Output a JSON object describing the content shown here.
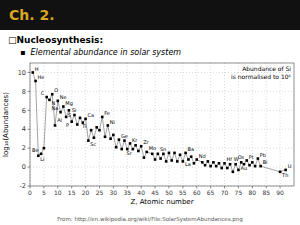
{
  "chart_data": {
    "type": "line",
    "title": "Ch. 2.",
    "annotations": [
      "□Nucleosynthesis:",
      "▪  Elemental abundance in solar system",
      "Abundance of Si\nis normalised to 10⁶",
      "From: http://en.wikipedia.org/wiki/File:SolarSystemAbundances.png"
    ],
    "xlabel": "Z, Atomic number",
    "ylabel": "log₁₀(Abundances)",
    "x": [
      1,
      2,
      3,
      4,
      5,
      6,
      7,
      8,
      9,
      10,
      11,
      12,
      13,
      14,
      15,
      16,
      17,
      18,
      19,
      20,
      21,
      22,
      23,
      24,
      25,
      26,
      27,
      28,
      29,
      30,
      31,
      32,
      33,
      34,
      35,
      36,
      37,
      38,
      39,
      40,
      41,
      42,
      44,
      45,
      46,
      47,
      48,
      49,
      50,
      51,
      52,
      53,
      54,
      55,
      56,
      57,
      58,
      59,
      60,
      62,
      63,
      64,
      65,
      66,
      67,
      68,
      69,
      70,
      71,
      72,
      73,
      74,
      75,
      76,
      77,
      78,
      79,
      80,
      81,
      82,
      83,
      90,
      92
    ],
    "values": [
      10.0,
      9.1,
      1.2,
      1.4,
      2.0,
      7.4,
      7.1,
      7.7,
      4.4,
      7.0,
      5.8,
      6.4,
      5.3,
      6.0,
      4.8,
      5.5,
      4.5,
      5.2,
      4.7,
      5.1,
      2.8,
      3.9,
      3.1,
      4.2,
      3.9,
      5.3,
      3.2,
      4.4,
      3.0,
      3.4,
      2.1,
      2.9,
      1.9,
      2.8,
      1.9,
      2.5,
      1.9,
      2.3,
      1.7,
      2.2,
      1.0,
      1.6,
      1.4,
      0.8,
      1.4,
      0.9,
      1.4,
      0.6,
      1.5,
      0.7,
      1.5,
      0.6,
      1.3,
      0.6,
      1.5,
      0.8,
      1.1,
      0.4,
      0.8,
      0.5,
      0.2,
      0.6,
      0.1,
      0.5,
      0.1,
      0.4,
      -0.1,
      0.4,
      -0.1,
      0.3,
      -0.5,
      0.3,
      -0.3,
      0.5,
      0.3,
      0.7,
      0.2,
      0.5,
      0.1,
      0.9,
      0.1,
      -0.5,
      -0.3
    ],
    "point_labels": [
      "H",
      "He",
      "Li",
      "Be",
      null,
      "C",
      "N",
      "O",
      null,
      "Ne",
      "Na",
      "Mg",
      "Al",
      "Si",
      "P",
      "S",
      null,
      null,
      null,
      "Ca",
      "Sc",
      "Ti",
      null,
      null,
      null,
      "Fe",
      null,
      "Ni",
      null,
      null,
      null,
      "Ge",
      null,
      null,
      null,
      "Kr",
      null,
      "Sr",
      null,
      "Zr",
      null,
      "Mo",
      null,
      null,
      null,
      null,
      null,
      null,
      "Sn",
      null,
      null,
      null,
      null,
      null,
      "Ba",
      "La",
      null,
      null,
      "Nd",
      null,
      null,
      null,
      null,
      null,
      null,
      null,
      null,
      null,
      null,
      "Hf",
      null,
      "W",
      null,
      "Os",
      null,
      "Pt",
      "Au",
      null,
      null,
      "Pb",
      "Bi",
      "Th",
      "U"
    ],
    "color": "black",
    "marker": "square",
    "line_style": "solid",
    "grid": true,
    "xlim": [
      0,
      95
    ],
    "ylim": [
      -2,
      11
    ],
    "xticks": [
      0,
      5,
      10,
      15,
      20,
      25,
      30,
      35,
      40,
      45,
      50,
      55,
      60,
      65,
      70,
      75,
      80,
      85,
      90
    ],
    "yticks": [
      -2,
      0,
      2,
      4,
      6,
      8,
      10
    ]
  }
}
